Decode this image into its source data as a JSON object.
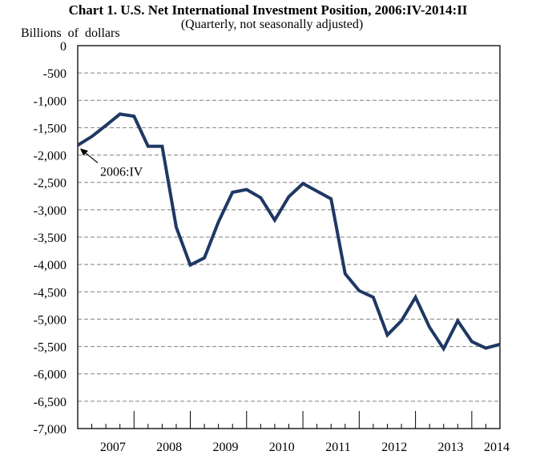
{
  "chart_data": {
    "type": "line",
    "title": "Chart 1. U.S. Net International Investment Position, 2006:IV-2014:II",
    "subtitle": "(Quarterly, not seasonally adjusted)",
    "ylabel": "Billions  of dollars",
    "xlabel": "",
    "ylim": [
      -7000,
      0
    ],
    "yticks": [
      0,
      -500,
      -1000,
      -1500,
      -2000,
      -2500,
      -3000,
      -3500,
      -4000,
      -4500,
      -5000,
      -5500,
      -6000,
      -6500,
      -7000
    ],
    "ytick_labels": [
      "0",
      "-500",
      "-1,000",
      "-1,500",
      "-2,000",
      "-2,500",
      "-3,000",
      "-3,500",
      "-4,000",
      "-4,500",
      "-5,000",
      "-5,500",
      "-6,000",
      "-6,500",
      "-7,000"
    ],
    "xtick_labels": [
      "2007",
      "2008",
      "2009",
      "2010",
      "2011",
      "2012",
      "2013",
      "2014"
    ],
    "grid": true,
    "line_color": "#1f3864",
    "annotation": {
      "text": "2006:IV",
      "points_to": "2006:IV"
    },
    "series": [
      {
        "name": "Net International Investment Position",
        "x": [
          "2006:IV",
          "2007:I",
          "2007:II",
          "2007:III",
          "2007:IV",
          "2008:I",
          "2008:II",
          "2008:III",
          "2008:IV",
          "2009:I",
          "2009:II",
          "2009:III",
          "2009:IV",
          "2010:I",
          "2010:II",
          "2010:III",
          "2010:IV",
          "2011:I",
          "2011:II",
          "2011:III",
          "2011:IV",
          "2012:I",
          "2012:II",
          "2012:III",
          "2012:IV",
          "2013:I",
          "2013:II",
          "2013:III",
          "2013:IV",
          "2014:I",
          "2014:II"
        ],
        "values": [
          -1820,
          -1660,
          -1460,
          -1250,
          -1290,
          -1840,
          -1840,
          -3320,
          -4010,
          -3880,
          -3220,
          -2680,
          -2630,
          -2780,
          -3190,
          -2760,
          -2520,
          -2660,
          -2800,
          -4170,
          -4480,
          -4600,
          -5290,
          -5030,
          -4600,
          -5150,
          -5540,
          -5030,
          -5410,
          -5530,
          -5460
        ]
      }
    ]
  }
}
